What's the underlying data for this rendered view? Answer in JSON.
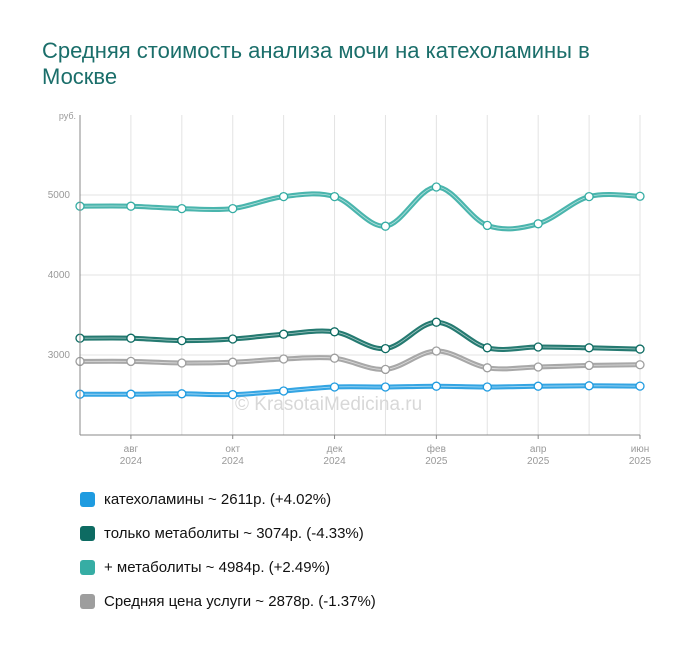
{
  "chart_data": {
    "type": "line",
    "title": "Средняя стоимость анализа мочи на катехоламины в Москве",
    "ylabel": "руб.",
    "yticks": [
      "3000",
      "4000",
      "5000"
    ],
    "ylim": [
      2000,
      6000
    ],
    "x_tick_labels": [
      {
        "month": "авг",
        "year": "2024"
      },
      {
        "month": "окт",
        "year": "2024"
      },
      {
        "month": "дек",
        "year": "2024"
      },
      {
        "month": "фев",
        "year": "2025"
      },
      {
        "month": "апр",
        "year": "2025"
      },
      {
        "month": "июн",
        "year": "2025"
      }
    ],
    "x": [
      "2024-07",
      "2024-08",
      "2024-09",
      "2024-10",
      "2024-11",
      "2024-12",
      "2025-01",
      "2025-02",
      "2025-03",
      "2025-04",
      "2025-05",
      "2025-06"
    ],
    "series": [
      {
        "key": "cat",
        "color": "#1e9be0",
        "values": [
          2510,
          2510,
          2515,
          2505,
          2550,
          2600,
          2600,
          2610,
          2600,
          2610,
          2615,
          2611
        ]
      },
      {
        "key": "meta",
        "color": "#0d6b62",
        "values": [
          3210,
          3210,
          3180,
          3200,
          3260,
          3290,
          3080,
          3410,
          3090,
          3100,
          3090,
          3074
        ]
      },
      {
        "key": "plus",
        "color": "#36ada4",
        "values": [
          4860,
          4860,
          4830,
          4830,
          4980,
          4980,
          4610,
          5100,
          4620,
          4640,
          4980,
          4984
        ]
      },
      {
        "key": "avg",
        "color": "#9e9e9e",
        "values": [
          2920,
          2920,
          2900,
          2910,
          2950,
          2960,
          2820,
          3050,
          2840,
          2850,
          2870,
          2878
        ]
      }
    ],
    "grid": true,
    "watermark": "© KrasotaiMedicina.ru"
  },
  "legend": [
    {
      "key": "cat",
      "text": "катехоламины ~ 2611р. (+4.02%)"
    },
    {
      "key": "meta",
      "text": "только метаболиты ~ 3074р. (-4.33%)"
    },
    {
      "key": "plus",
      "text": "+ метаболиты ~ 4984р. (+2.49%)"
    },
    {
      "key": "avg",
      "text": "Средняя цена услуги ~ 2878р. (-1.37%)"
    }
  ]
}
